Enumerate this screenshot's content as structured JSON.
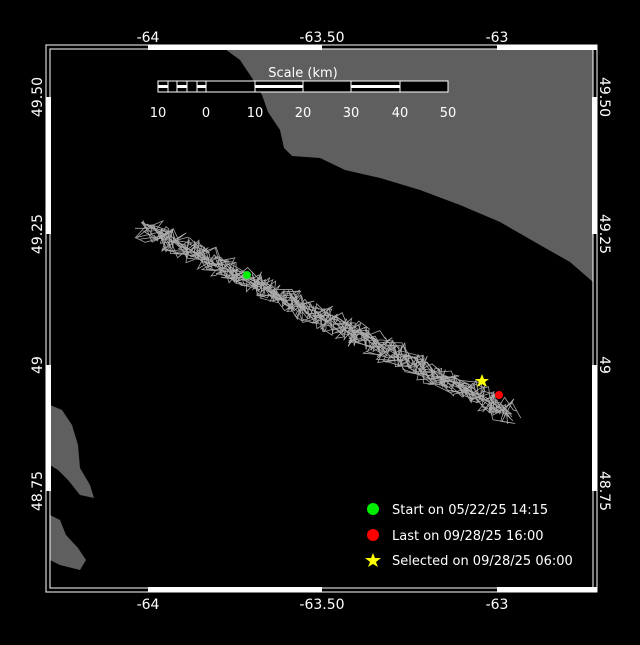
{
  "map": {
    "colors": {
      "background": "#000000",
      "land": "#5f5f5f",
      "track": "#aaaaaa",
      "frame": "#ffffff",
      "start": "#00ee00",
      "last": "#ff0000",
      "selected": "#ffff00"
    },
    "lon_ticks": [
      "-64",
      "-63.50",
      "-63"
    ],
    "lat_ticks": [
      "49.50",
      "49.25",
      "49",
      "48.75"
    ],
    "scale": {
      "title": "Scale (km)",
      "labels": [
        "10",
        "0",
        "10",
        "20",
        "30",
        "40",
        "50"
      ]
    },
    "legend": [
      {
        "icon": "green-circle",
        "label": "Start on 05/22/25 14:15"
      },
      {
        "icon": "red-circle",
        "label": "Last on 09/28/25 16:00"
      },
      {
        "icon": "yellow-star",
        "label": "Selected on 09/28/25 06:00"
      }
    ]
  }
}
